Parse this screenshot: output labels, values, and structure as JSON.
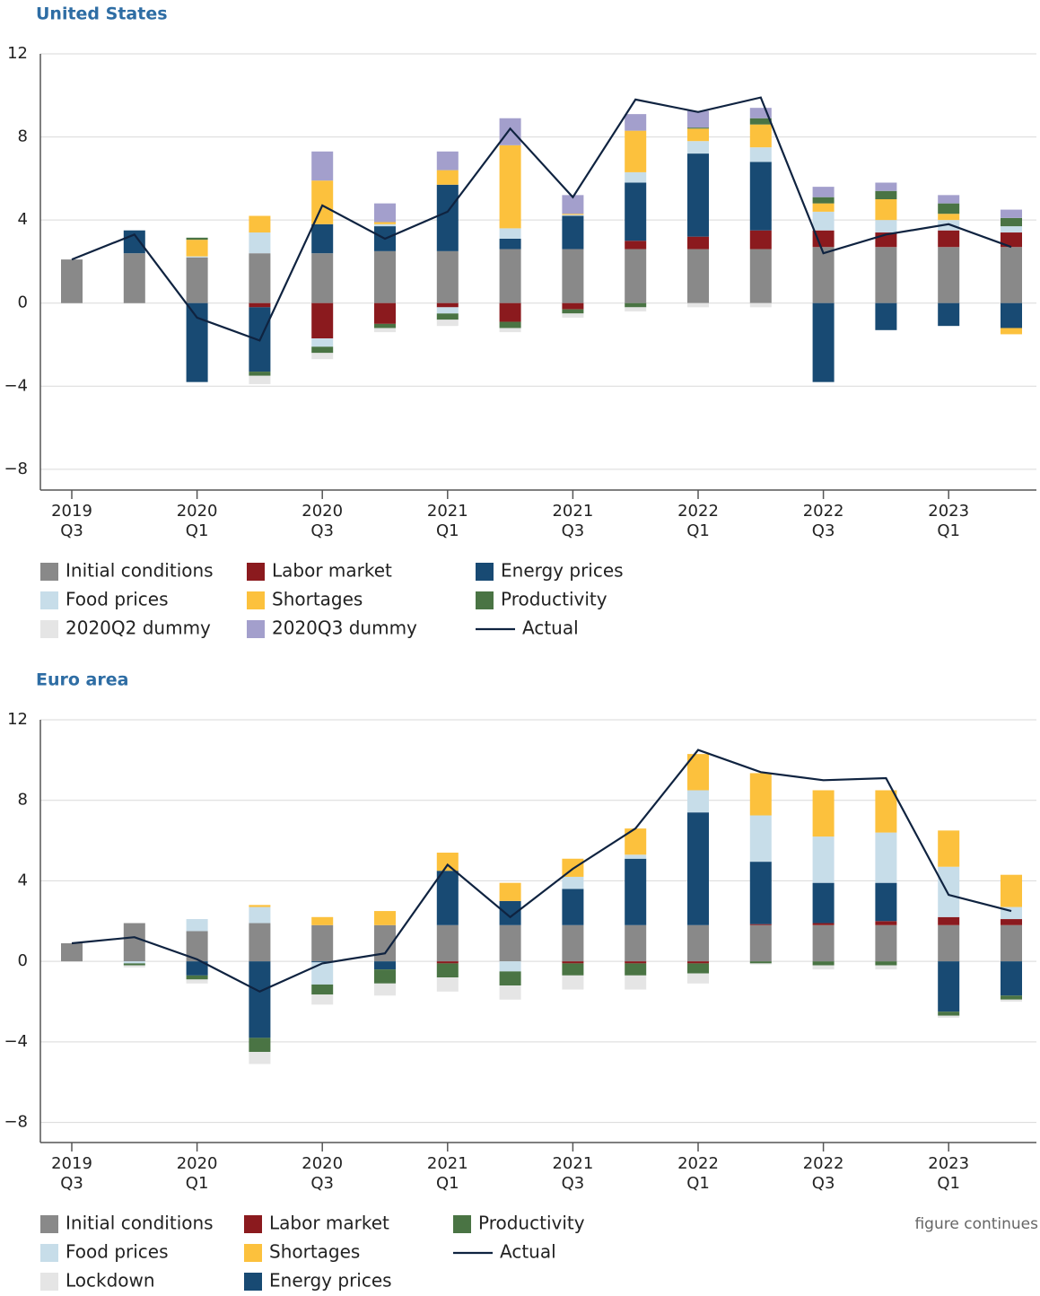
{
  "chart_data": [
    {
      "type": "bar",
      "stacked": true,
      "title": "United States",
      "grid": true,
      "categories": [
        "2019\nQ3",
        null,
        "2020\nQ1",
        null,
        "2020\nQ3",
        null,
        "2021\nQ1",
        null,
        "2021\nQ3",
        null,
        "2022\nQ1",
        null,
        "2022\nQ3",
        null,
        "2023\nQ1",
        null
      ],
      "ylim": [
        -9,
        12
      ],
      "yticks": [
        {
          "value": -8,
          "label": "−8"
        },
        {
          "value": -4,
          "label": "−4"
        },
        0,
        4,
        8,
        12
      ],
      "series": [
        {
          "name": "Initial conditions",
          "color": "#898989",
          "values": [
            2.1,
            2.4,
            2.2,
            2.4,
            2.4,
            2.5,
            2.5,
            2.6,
            2.6,
            2.6,
            2.6,
            2.6,
            2.7,
            2.7,
            2.7,
            2.7
          ]
        },
        {
          "name": "Labor market",
          "color": "#8b1a1e",
          "values": [
            0,
            0,
            0,
            -0.2,
            -1.7,
            -1.0,
            -0.2,
            -0.9,
            -0.3,
            0.4,
            0.6,
            0.9,
            0.8,
            0.7,
            0.8,
            0.7
          ]
        },
        {
          "name": "Energy prices",
          "color": "#184a73",
          "values": [
            0,
            1.1,
            -3.8,
            -3.1,
            1.4,
            1.2,
            3.2,
            0.5,
            1.6,
            2.8,
            4.0,
            3.3,
            -3.8,
            -1.3,
            -1.1,
            -1.2
          ]
        },
        {
          "name": "Food prices",
          "color": "#c7dde9",
          "values": [
            0,
            0,
            0.05,
            1.0,
            -0.4,
            0.1,
            -0.3,
            0.5,
            0.05,
            0.5,
            0.6,
            0.7,
            0.9,
            0.6,
            0.5,
            0.3
          ]
        },
        {
          "name": "Shortages",
          "color": "#fcc13d",
          "values": [
            0,
            0,
            0.8,
            0.8,
            2.1,
            0.1,
            0.7,
            4.0,
            0.05,
            2.0,
            0.6,
            1.1,
            0.4,
            1.0,
            0.3,
            -0.3
          ]
        },
        {
          "name": "Productivity",
          "color": "#4a7444",
          "values": [
            0,
            0,
            0.1,
            -0.2,
            -0.3,
            -0.2,
            -0.3,
            -0.3,
            -0.2,
            -0.2,
            0.05,
            0.3,
            0.3,
            0.4,
            0.5,
            0.4
          ]
        },
        {
          "name": "2020Q2 dummy",
          "color": "#e5e5e5",
          "values": [
            0,
            0,
            0,
            -0.4,
            -0.3,
            -0.2,
            -0.3,
            -0.2,
            -0.2,
            -0.2,
            -0.2,
            -0.2,
            0,
            0,
            0,
            0
          ]
        },
        {
          "name": "2020Q3 dummy",
          "color": "#a39fcc",
          "values": [
            0,
            0,
            0,
            0,
            1.4,
            0.9,
            0.9,
            1.3,
            0.9,
            0.8,
            0.8,
            0.5,
            0.5,
            0.4,
            0.4,
            0.4
          ]
        },
        {
          "name": "Actual",
          "type": "line",
          "color": "#0f2340",
          "values": [
            2.1,
            3.3,
            -0.7,
            -1.8,
            4.7,
            3.1,
            4.4,
            8.4,
            5.1,
            9.8,
            9.2,
            9.9,
            2.4,
            3.3,
            3.8,
            2.7
          ]
        }
      ]
    },
    {
      "type": "bar",
      "stacked": true,
      "title": "Euro area",
      "grid": true,
      "categories": [
        "2019\nQ3",
        null,
        "2020\nQ1",
        null,
        "2020\nQ3",
        null,
        "2021\nQ1",
        null,
        "2021\nQ3",
        null,
        "2022\nQ1",
        null,
        "2022\nQ3",
        null,
        "2023\nQ1",
        null
      ],
      "ylim": [
        -9,
        12
      ],
      "yticks": [
        {
          "value": -8,
          "label": "−8"
        },
        {
          "value": -4,
          "label": "−4"
        },
        0,
        4,
        8,
        12
      ],
      "series": [
        {
          "name": "Initial conditions",
          "color": "#898989",
          "values": [
            0.9,
            1.9,
            1.5,
            1.9,
            1.8,
            1.8,
            1.8,
            1.8,
            1.8,
            1.8,
            1.8,
            1.8,
            1.8,
            1.8,
            1.8,
            1.8
          ]
        },
        {
          "name": "Labor market",
          "color": "#8b1a1e",
          "values": [
            0,
            0,
            0,
            0,
            0,
            0,
            -0.1,
            0,
            -0.1,
            -0.1,
            -0.1,
            0.05,
            0.1,
            0.2,
            0.4,
            0.3
          ]
        },
        {
          "name": "Energy prices",
          "color": "#184a73",
          "values": [
            0,
            0,
            -0.7,
            -3.8,
            -0.05,
            -0.4,
            2.7,
            1.2,
            1.8,
            3.3,
            5.6,
            3.1,
            2.0,
            1.9,
            -2.5,
            -1.7
          ]
        },
        {
          "name": "Food prices",
          "color": "#c7dde9",
          "values": [
            0,
            -0.1,
            0.6,
            0.8,
            -1.1,
            0,
            0,
            -0.5,
            0.6,
            0.2,
            1.1,
            2.3,
            2.3,
            2.5,
            2.5,
            0.6
          ]
        },
        {
          "name": "Shortages",
          "color": "#fcc13d",
          "values": [
            0,
            0,
            0,
            0.1,
            0.4,
            0.7,
            0.9,
            0.9,
            0.9,
            1.3,
            1.8,
            2.1,
            2.3,
            2.1,
            1.8,
            1.6
          ]
        },
        {
          "name": "Productivity",
          "color": "#4a7444",
          "values": [
            0,
            -0.1,
            -0.2,
            -0.7,
            -0.5,
            -0.7,
            -0.7,
            -0.7,
            -0.6,
            -0.6,
            -0.5,
            -0.1,
            -0.2,
            -0.2,
            -0.2,
            -0.2
          ]
        },
        {
          "name": "Lockdown",
          "color": "#e5e5e5",
          "values": [
            0,
            -0.1,
            -0.2,
            -0.6,
            -0.5,
            -0.6,
            -0.7,
            -0.7,
            -0.7,
            -0.7,
            -0.5,
            -0.05,
            -0.2,
            -0.2,
            -0.1,
            -0.1
          ]
        },
        {
          "name": "Actual",
          "type": "line",
          "color": "#0f2340",
          "values": [
            0.9,
            1.2,
            0.1,
            -1.5,
            -0.1,
            0.4,
            4.8,
            2.2,
            4.6,
            6.6,
            10.5,
            9.4,
            9.0,
            9.1,
            3.3,
            2.5
          ]
        }
      ]
    }
  ],
  "note": "figure continues"
}
